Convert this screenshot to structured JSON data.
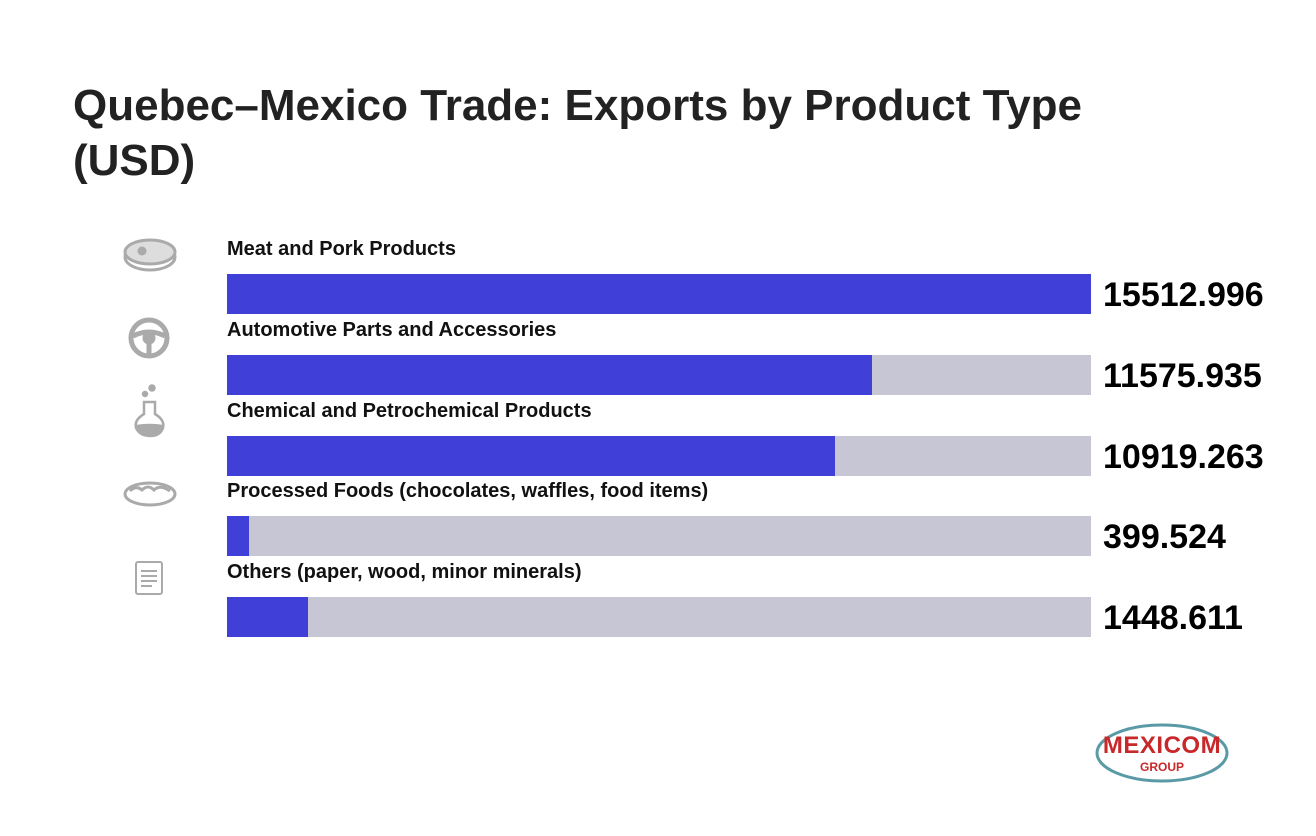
{
  "chart_data": {
    "type": "bar",
    "orientation": "horizontal",
    "title": "Quebec–Mexico Trade: Exports by Product Type (USD)",
    "categories": [
      "Meat and Pork Products",
      "Automotive Parts and Accessories",
      "Chemical and Petrochemical Products",
      "Processed Foods (chocolates, waffles, food items)",
      "Others (paper, wood, minor minerals)"
    ],
    "values": [
      15512.996,
      11575.935,
      10919.263,
      399.524,
      1448.611
    ],
    "color": "#4040d8",
    "track_color": "#c6c6d4"
  },
  "logo": {
    "name": "MEXICOM",
    "tagline": "GROUP"
  }
}
